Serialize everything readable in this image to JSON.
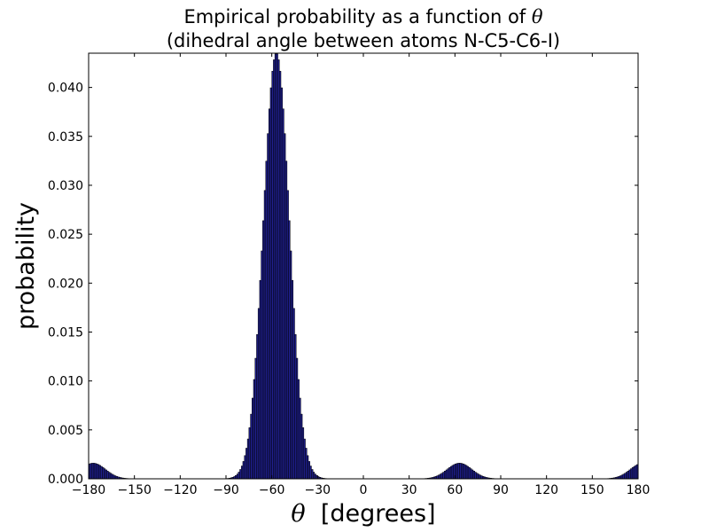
{
  "chart_data": {
    "type": "bar",
    "title_line1_prefix": "Empirical probability as a function of ",
    "title_symbol": "θ",
    "title_line2": "(dihedral angle between atoms N-C5-C6-I)",
    "xlabel_symbol": "θ",
    "xlabel_text": "  [degrees]",
    "ylabel": "probability",
    "xlim": [
      -180,
      180
    ],
    "ylim": [
      0,
      0.0435
    ],
    "xticks": [
      -180,
      -150,
      -120,
      -90,
      -60,
      -30,
      0,
      30,
      60,
      90,
      120,
      150,
      180
    ],
    "xtick_labels": [
      "−180",
      "−150",
      "−120",
      "−90",
      "−60",
      "−30",
      "0",
      "30",
      "60",
      "90",
      "120",
      "150",
      "180"
    ],
    "yticks": [
      0,
      0.005,
      0.01,
      0.015,
      0.02,
      0.025,
      0.03,
      0.035,
      0.04
    ],
    "ytick_labels": [
      "0.000",
      "0.005",
      "0.010",
      "0.015",
      "0.020",
      "0.025",
      "0.030",
      "0.035",
      "0.040"
    ],
    "bin_width": 1,
    "bar_color": "#1f1f8f",
    "edge_color": "#000000",
    "grid": false,
    "components": [
      {
        "mean": -57,
        "sd": 8.5,
        "amp": 0.0435
      },
      {
        "mean": 63,
        "sd": 8,
        "amp": 0.0016
      },
      {
        "mean": -177,
        "sd": 8,
        "amp": 0.0016
      },
      {
        "mean": 183,
        "sd": 8,
        "amp": 0.0016
      }
    ]
  }
}
